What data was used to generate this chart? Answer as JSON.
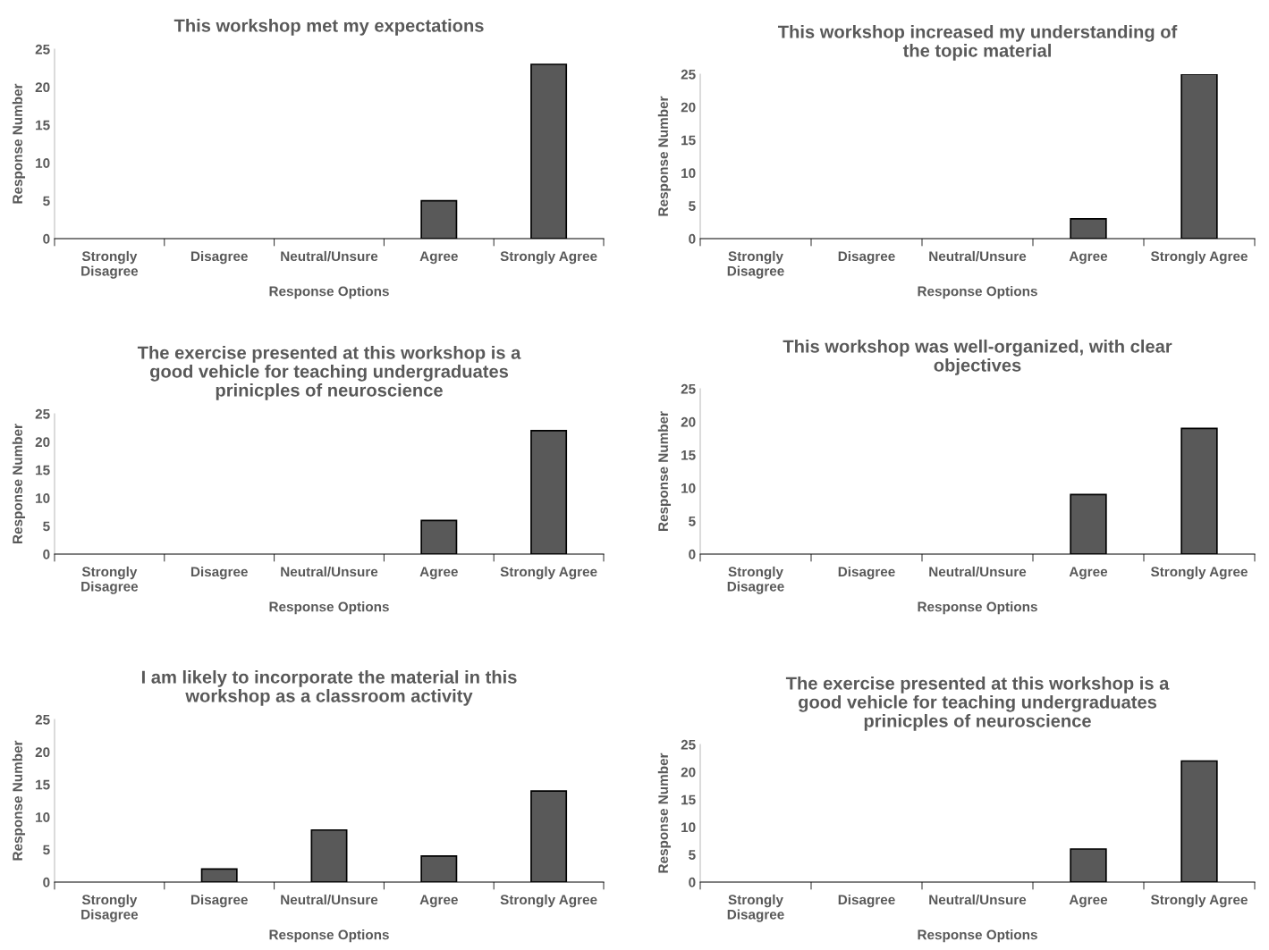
{
  "chart_data": [
    {
      "type": "bar",
      "title": "This workshop met my expectations",
      "xlabel": "Response Options",
      "ylabel": "Response Number",
      "categories": [
        "Strongly\nDisagree",
        "Disagree",
        "Neutral/Unsure",
        "Agree",
        "Strongly Agree"
      ],
      "values": [
        0,
        0,
        0,
        5,
        23
      ],
      "color": "#595959",
      "ylim": [
        0,
        25
      ],
      "yticks": [
        0,
        5,
        10,
        15,
        20,
        25
      ],
      "grid": false,
      "legend": false
    },
    {
      "type": "bar",
      "title": "This workshop increased my understanding of\nthe topic material",
      "xlabel": "Response Options",
      "ylabel": "Response Number",
      "categories": [
        "Strongly\nDisagree",
        "Disagree",
        "Neutral/Unsure",
        "Agree",
        "Strongly Agree"
      ],
      "values": [
        0,
        0,
        0,
        3,
        25
      ],
      "color": "#595959",
      "ylim": [
        0,
        25
      ],
      "yticks": [
        0,
        5,
        10,
        15,
        20,
        25
      ],
      "grid": false,
      "legend": false
    },
    {
      "type": "bar",
      "title": "The exercise presented at this workshop is a\ngood vehicle for teaching undergraduates\nprinicples of neuroscience",
      "xlabel": "Response Options",
      "ylabel": "Response Number",
      "categories": [
        "Strongly\nDisagree",
        "Disagree",
        "Neutral/Unsure",
        "Agree",
        "Strongly Agree"
      ],
      "values": [
        0,
        0,
        0,
        6,
        22
      ],
      "color": "#595959",
      "ylim": [
        0,
        25
      ],
      "yticks": [
        0,
        5,
        10,
        15,
        20,
        25
      ],
      "grid": false,
      "legend": false
    },
    {
      "type": "bar",
      "title": "This workshop was well-organized, with clear\nobjectives",
      "xlabel": "Response Options",
      "ylabel": "Response Number",
      "categories": [
        "Strongly\nDisagree",
        "Disagree",
        "Neutral/Unsure",
        "Agree",
        "Strongly Agree"
      ],
      "values": [
        0,
        0,
        0,
        9,
        19
      ],
      "color": "#595959",
      "ylim": [
        0,
        25
      ],
      "yticks": [
        0,
        5,
        10,
        15,
        20,
        25
      ],
      "grid": false,
      "legend": false
    },
    {
      "type": "bar",
      "title": "I am likely to incorporate the material in this\nworkshop as a classroom activity",
      "xlabel": "Response Options",
      "ylabel": "Response Number",
      "categories": [
        "Strongly\nDisagree",
        "Disagree",
        "Neutral/Unsure",
        "Agree",
        "Strongly Agree"
      ],
      "values": [
        0,
        2,
        8,
        4,
        14
      ],
      "color": "#595959",
      "ylim": [
        0,
        25
      ],
      "yticks": [
        0,
        5,
        10,
        15,
        20,
        25
      ],
      "grid": false,
      "legend": false
    },
    {
      "type": "bar",
      "title": "The exercise presented at this workshop is a\ngood vehicle for teaching undergraduates\nprinicples of neuroscience",
      "xlabel": "Response Options",
      "ylabel": "Response Number",
      "categories": [
        "Strongly\nDisagree",
        "Disagree",
        "Neutral/Unsure",
        "Agree",
        "Strongly Agree"
      ],
      "values": [
        0,
        0,
        0,
        6,
        22
      ],
      "color": "#595959",
      "ylim": [
        0,
        25
      ],
      "yticks": [
        0,
        5,
        10,
        15,
        20,
        25
      ],
      "grid": false,
      "legend": false
    }
  ]
}
